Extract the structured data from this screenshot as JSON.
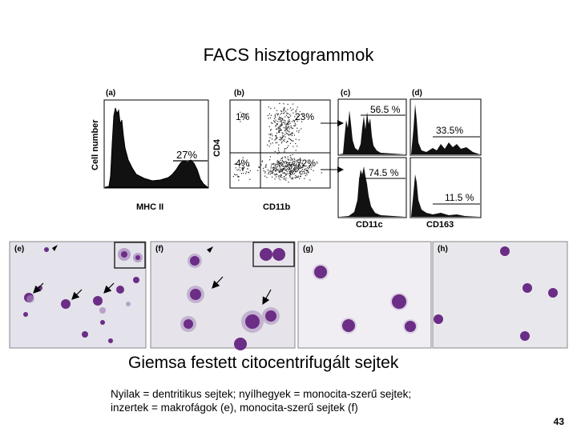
{
  "slide": {
    "title": "FACS hisztogrammok",
    "caption": "Giemsa festett citocentrifugált sejtek",
    "note_line1": "Nyilak = dentritikus sejtek; nyílhegyek = monocita-szerű sejtek;",
    "note_line2": "inzertek = makrofágok (e), monocita-szerű sejtek (f)",
    "page_number": "43"
  },
  "figure": {
    "panels": {
      "a": "(a)",
      "b": "(b)",
      "c": "(c)",
      "d": "(d)",
      "e": "(e)",
      "f": "(f)",
      "g": "(g)",
      "h": "(h)"
    },
    "a": {
      "ylabel": "Cell number",
      "xlabel": "MHC II",
      "pct": "27%"
    },
    "b": {
      "ylabel": "CD4",
      "xlabel": "CD11b",
      "q_ul": "1%",
      "q_ur": "23%",
      "q_ll": "4%",
      "q_lr": "72%"
    },
    "c": {
      "xlabel": "CD11c",
      "pct_top": "56.5 %",
      "pct_bottom": "74.5 %"
    },
    "d": {
      "xlabel": "CD163",
      "pct_top": "33.5%",
      "pct_bottom": "11.5 %"
    }
  },
  "colors": {
    "background": "#ffffff",
    "cell": "#6b2d86",
    "cell_light": "#b9a2c9",
    "micro_bg": "#e4e2ea"
  }
}
